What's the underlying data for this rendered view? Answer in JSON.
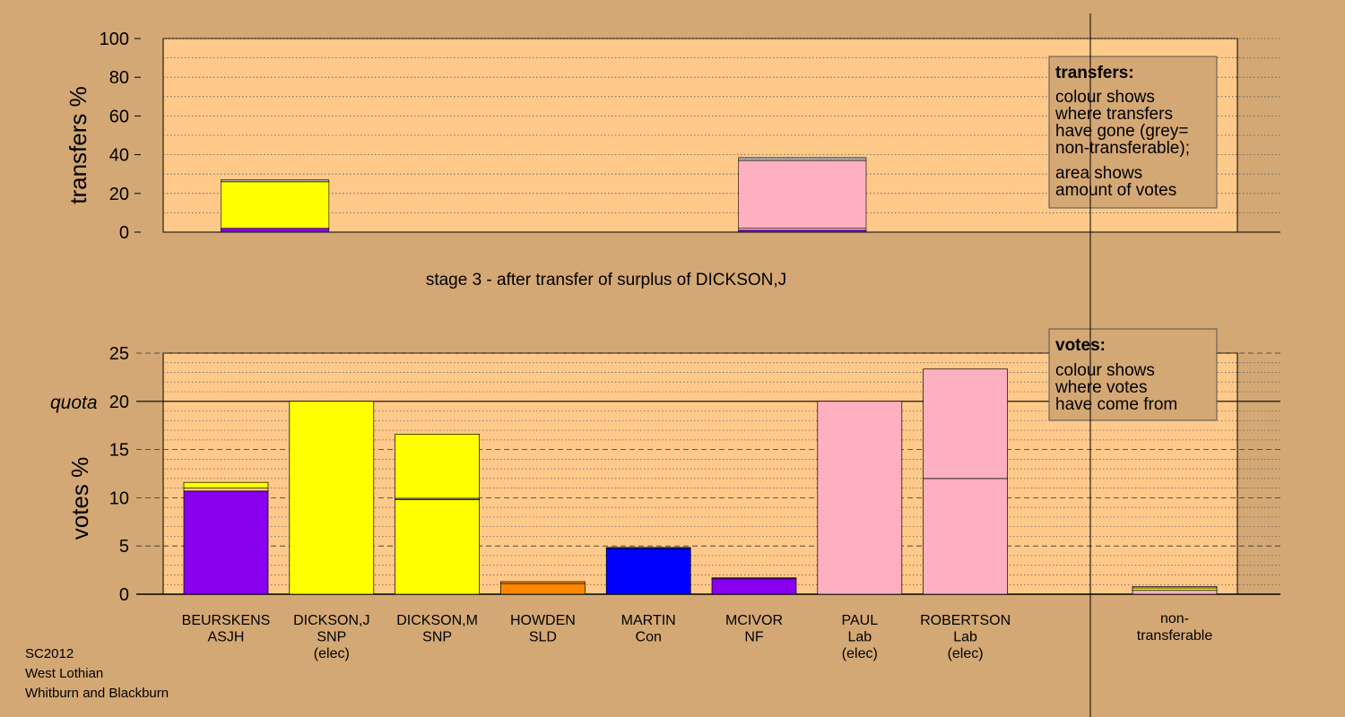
{
  "stage_title": "stage 3 - after transfer of surplus of DICKSON,J",
  "footer": [
    "SC2012",
    "West Lothian",
    "Whitburn and Blackburn"
  ],
  "legend_transfers": {
    "title": "transfers:",
    "lines": [
      "colour shows",
      "where transfers",
      "have gone (grey=",
      "non-transferable);",
      "area shows",
      "amount of votes"
    ]
  },
  "legend_votes": {
    "title": "votes:",
    "lines": [
      "colour shows",
      "where votes",
      "have come from"
    ]
  },
  "colors": {
    "background": "#d4a874",
    "plot": "#ffc98a",
    "ASJH": "#8800ee",
    "SNP": "#ffff00",
    "SLD": "#ff8800",
    "Con": "#0000ff",
    "NF": "#8800ee",
    "Lab": "#ffb0c0",
    "grey": "#aaaaaa"
  },
  "chart_data": [
    {
      "type": "bar",
      "stacked": true,
      "ylabel": "transfers %",
      "ylim": [
        0,
        100
      ],
      "yticks": [
        0,
        20,
        40,
        60,
        80,
        100
      ],
      "grid": true,
      "bars": [
        {
          "position": 1.3,
          "width": 1.1,
          "segments": [
            {
              "value": 2,
              "color": "#8800ee"
            },
            {
              "value": 24,
              "color": "#ffff00"
            },
            {
              "value": 1,
              "color": "#aaaaaa"
            }
          ]
        },
        {
          "position": 6.2,
          "width": 1.3,
          "segments": [
            {
              "value": 1,
              "color": "#8800ee"
            },
            {
              "value": 1,
              "color": "#ffb0c0"
            },
            {
              "value": 35,
              "color": "#ffb0c0"
            },
            {
              "value": 1.5,
              "color": "#aaaaaa"
            }
          ]
        }
      ]
    },
    {
      "type": "bar",
      "stacked": true,
      "ylabel": "votes %",
      "ylim": [
        0,
        25
      ],
      "yticks": [
        0,
        5,
        10,
        15,
        20,
        25
      ],
      "quota": 20,
      "quota_label": "quota",
      "grid": true,
      "categories": [
        {
          "name": "BEURSKENS",
          "party": "ASJH",
          "elected": "",
          "segments": [
            {
              "value": 10.7,
              "color": "#8800ee"
            },
            {
              "value": 0.3,
              "color": "#ffc98a"
            },
            {
              "value": 0.6,
              "color": "#ffff00"
            }
          ]
        },
        {
          "name": "DICKSON,J",
          "party": "SNP",
          "elected": "(elec)",
          "segments": [
            {
              "value": 20.0,
              "color": "#ffff00"
            }
          ]
        },
        {
          "name": "DICKSON,M",
          "party": "SNP",
          "elected": "",
          "segments": [
            {
              "value": 9.8,
              "color": "#ffff00"
            },
            {
              "value": 0.15,
              "color": "#aaaaaa"
            },
            {
              "value": 6.65,
              "color": "#ffff00"
            }
          ]
        },
        {
          "name": "HOWDEN",
          "party": "SLD",
          "elected": "",
          "segments": [
            {
              "value": 1.1,
              "color": "#ff8800"
            },
            {
              "value": 0.2,
              "color": "#ff8800"
            }
          ]
        },
        {
          "name": "MARTIN",
          "party": "Con",
          "elected": "",
          "segments": [
            {
              "value": 4.7,
              "color": "#0000ff"
            },
            {
              "value": 0.15,
              "color": "#0000ff"
            }
          ]
        },
        {
          "name": "MCIVOR",
          "party": "NF",
          "elected": "",
          "segments": [
            {
              "value": 1.6,
              "color": "#8800ee"
            },
            {
              "value": 0.1,
              "color": "#8800ee"
            }
          ]
        },
        {
          "name": "PAUL",
          "party": "Lab",
          "elected": "(elec)",
          "segments": [
            {
              "value": 20.0,
              "color": "#ffb0c0"
            }
          ]
        },
        {
          "name": "ROBERTSON",
          "party": "Lab",
          "elected": "(elec)",
          "segments": [
            {
              "value": 12.0,
              "color": "#ffb0c0"
            },
            {
              "value": 11.35,
              "color": "#ffb0c0"
            }
          ]
        }
      ],
      "nontransferable": {
        "name": "non-",
        "name2": "transferable",
        "segments": [
          {
            "value": 0.4,
            "color": "#ffb0c0"
          },
          {
            "value": 0.25,
            "color": "#ffff00"
          },
          {
            "value": 0.15,
            "color": "#ffb0c0"
          }
        ]
      }
    }
  ]
}
